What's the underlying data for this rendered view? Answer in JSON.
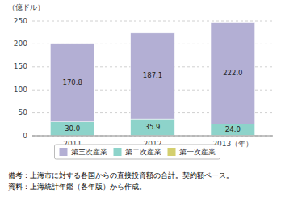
{
  "chart_data": {
    "type": "bar",
    "stacked": true,
    "ylabel": "（億ドル）",
    "categories": [
      "2011",
      "2012",
      "2013（年）"
    ],
    "series": [
      {
        "name": "第一次産業",
        "color": "#d4cf6e",
        "values": [
          0.4,
          0.9,
          1.2
        ],
        "data_labels": false
      },
      {
        "name": "第二次産業",
        "color": "#8dd3ca",
        "values": [
          30.0,
          35.9,
          24.0
        ],
        "value_labels": [
          "30.0",
          "35.9",
          "24.0"
        ],
        "data_labels": true
      },
      {
        "name": "第三次産業",
        "color": "#b3afd4",
        "values": [
          170.8,
          187.1,
          222.0
        ],
        "value_labels": [
          "170.8",
          "187.1",
          "222.0"
        ],
        "data_labels": true
      }
    ],
    "ylim": [
      0,
      250
    ],
    "yticks": [
      0,
      50,
      100,
      150,
      200,
      250
    ],
    "grid": true,
    "legend": "bottom",
    "annotations": [
      "備考：上海市に対する各国からの直接投資額の合計。契約額ベース。",
      "資料：上海統計年鑑（各年版）から作成。"
    ]
  }
}
